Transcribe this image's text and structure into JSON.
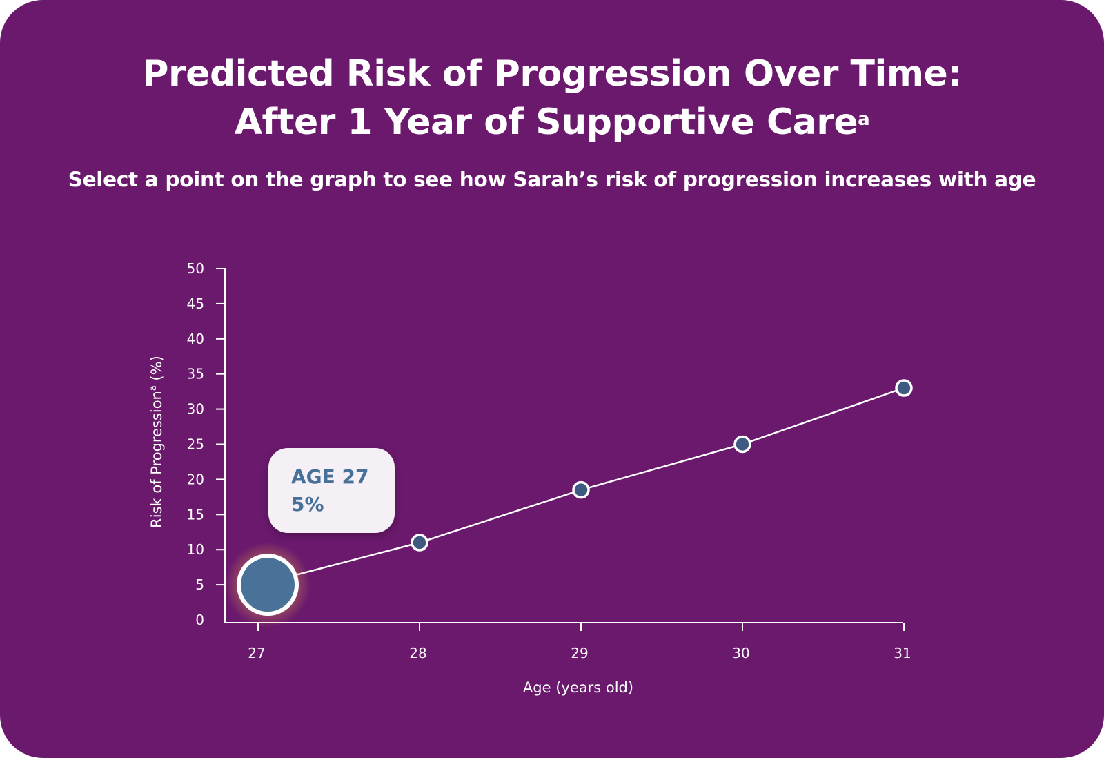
{
  "header": {
    "title_line1": "Predicted Risk of Progression Over Time:",
    "title_line2": "After 1 Year of Supportive Care",
    "title_sup": "a",
    "subtitle": "Select a point on the graph to see how Sarah’s risk of progression increases with age"
  },
  "tooltip": {
    "age_label": "AGE 27",
    "value_label": "5%"
  },
  "colors": {
    "background": "#6a196c",
    "point_fill": "#3f5a80",
    "selected_point_fill": "#4a7299",
    "line": "#ffffff",
    "tooltip_bg": "#f5eff6",
    "tooltip_text": "#48719a"
  },
  "chart_data": {
    "type": "line",
    "title": "Predicted Risk of Progression Over Time: After 1 Year of Supportive Care",
    "xlabel": "Age (years old)",
    "ylabel": "Risk of Progression",
    "ylabel_sup": "a",
    "ylabel_unit": "(%)",
    "x": [
      27,
      28,
      29,
      30,
      31
    ],
    "y": [
      5,
      11,
      18.5,
      25,
      33
    ],
    "xticks": [
      "27",
      "28",
      "29",
      "30",
      "31"
    ],
    "yticks": [
      "0",
      "5",
      "10",
      "15",
      "20",
      "25",
      "30",
      "35",
      "40",
      "45",
      "50"
    ],
    "ylim": [
      0,
      50
    ],
    "selected_index": 0,
    "grid": false,
    "legend": "none"
  }
}
